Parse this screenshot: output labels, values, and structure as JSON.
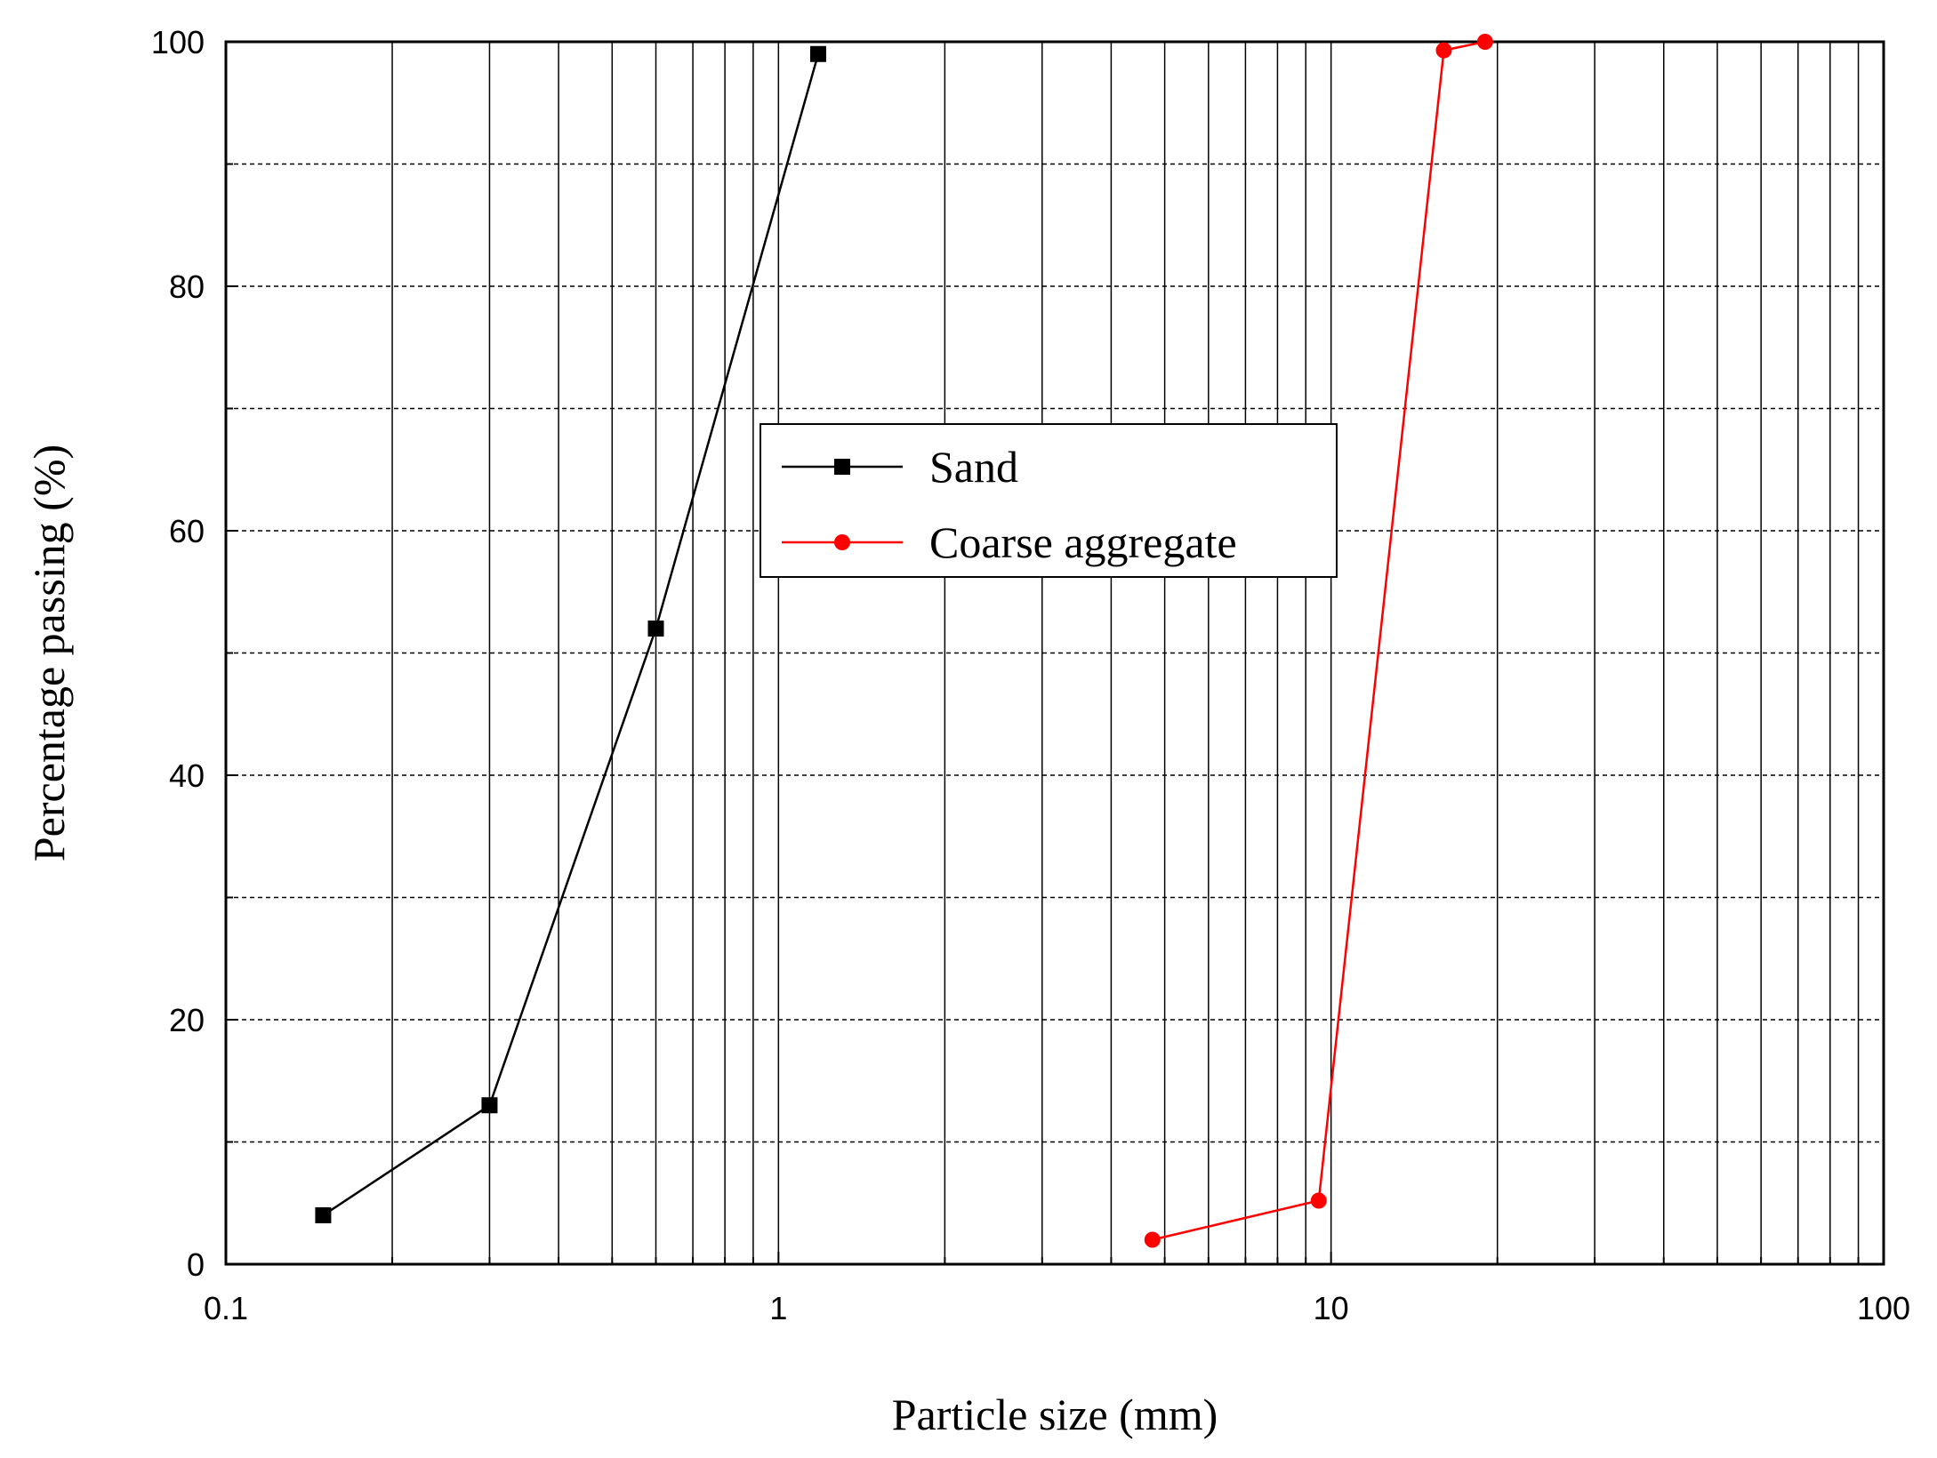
{
  "chart_data": {
    "type": "line",
    "xscale": "log",
    "xlim": [
      0.1,
      100
    ],
    "ylim": [
      0,
      100
    ],
    "grid": true,
    "xlabel": "Particle size (mm)",
    "ylabel": "Percentage passing (%)",
    "xticks": [
      "0.1",
      "1",
      "10",
      "100"
    ],
    "yticks": [
      "0",
      "20",
      "40",
      "60",
      "80",
      "100"
    ],
    "legend_position": "center",
    "series": [
      {
        "name": "Sand",
        "color": "#000000",
        "marker": "square",
        "x": [
          0.15,
          0.3,
          0.6,
          1.18
        ],
        "y": [
          4,
          13,
          52,
          99
        ]
      },
      {
        "name": "Coarse aggregate",
        "color": "#ff0000",
        "marker": "circle",
        "x": [
          4.75,
          9.5,
          16,
          19
        ],
        "y": [
          2,
          5.2,
          99.3,
          100
        ]
      }
    ]
  }
}
